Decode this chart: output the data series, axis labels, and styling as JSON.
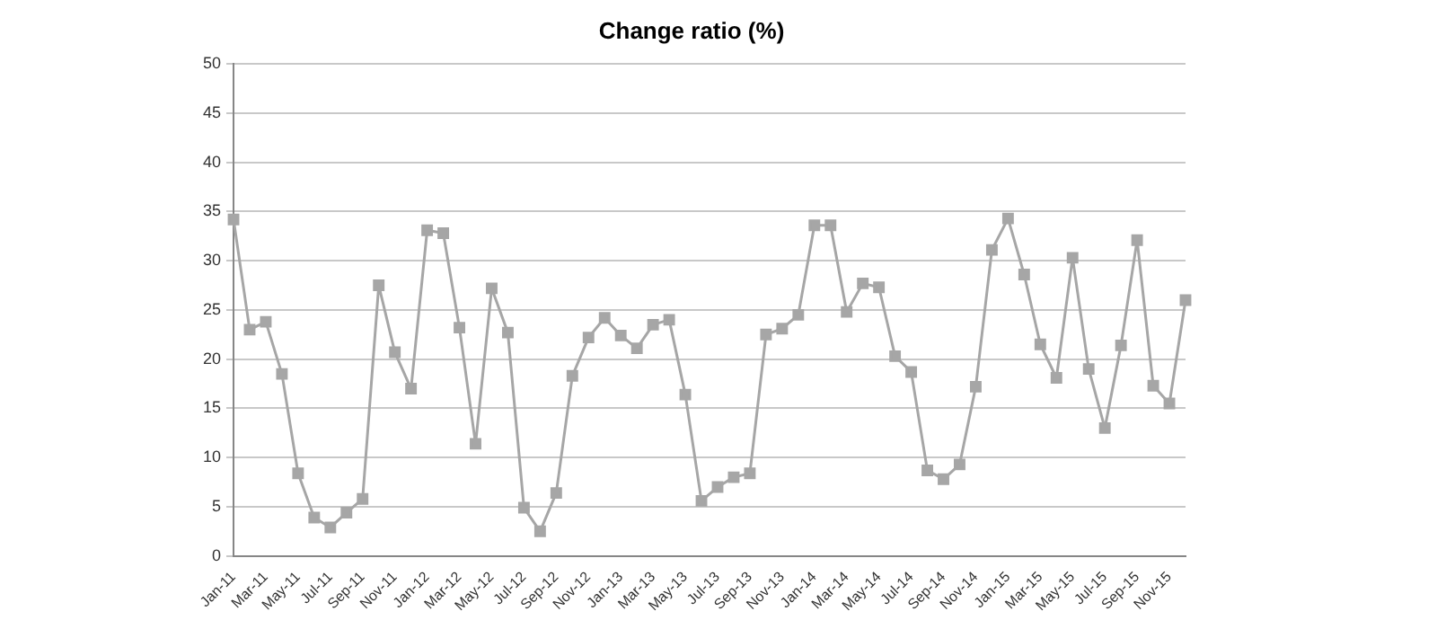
{
  "chart_data": {
    "type": "line",
    "title": "Change ratio (%)",
    "categories": [
      "Jan-11",
      null,
      "Mar-11",
      null,
      "May-11",
      null,
      "Jul-11",
      null,
      "Sep-11",
      null,
      "Nov-11",
      null,
      "Jan-12",
      null,
      "Mar-12",
      null,
      "May-12",
      null,
      "Jul-12",
      null,
      "Sep-12",
      null,
      "Nov-12",
      null,
      "Jan-13",
      null,
      "Mar-13",
      null,
      "May-13",
      null,
      "Jul-13",
      null,
      "Sep-13",
      null,
      "Nov-13",
      null,
      "Jan-14",
      null,
      "Mar-14",
      null,
      "May-14",
      null,
      "Jul-14",
      null,
      "Sep-14",
      null,
      "Nov-14",
      null,
      "Jan-15",
      null,
      "Mar-15",
      null,
      "May-15",
      null,
      "Jul-15",
      null,
      "Sep-15",
      null,
      "Nov-15",
      null
    ],
    "series": [
      {
        "color": "#a6a6a6",
        "values": [
          34.2,
          23,
          23.8,
          18.5,
          8.4,
          3.9,
          2.9,
          4.4,
          5.8,
          27.5,
          20.7,
          17,
          33.1,
          32.8,
          23.2,
          11.4,
          27.2,
          22.7,
          4.9,
          2.5,
          6.4,
          18.3,
          22.2,
          24.2,
          22.4,
          21.1,
          23.5,
          24,
          16.4,
          5.6,
          7,
          8,
          8.4,
          22.5,
          23.1,
          24.5,
          33.6,
          33.6,
          24.8,
          27.7,
          27.3,
          20.3,
          18.7,
          8.7,
          7.8,
          9.3,
          17.2,
          31.1,
          34.3,
          28.6,
          21.5,
          18.1,
          30.3,
          19,
          13,
          21.4,
          32.1,
          17.3,
          15.5,
          26
        ]
      }
    ],
    "ylim": [
      0,
      50
    ],
    "yticks": [
      0,
      5,
      10,
      15,
      20,
      25,
      30,
      35,
      40,
      45,
      50
    ],
    "grid": "y",
    "legend": false,
    "marker": "square",
    "line_style": "solid"
  }
}
